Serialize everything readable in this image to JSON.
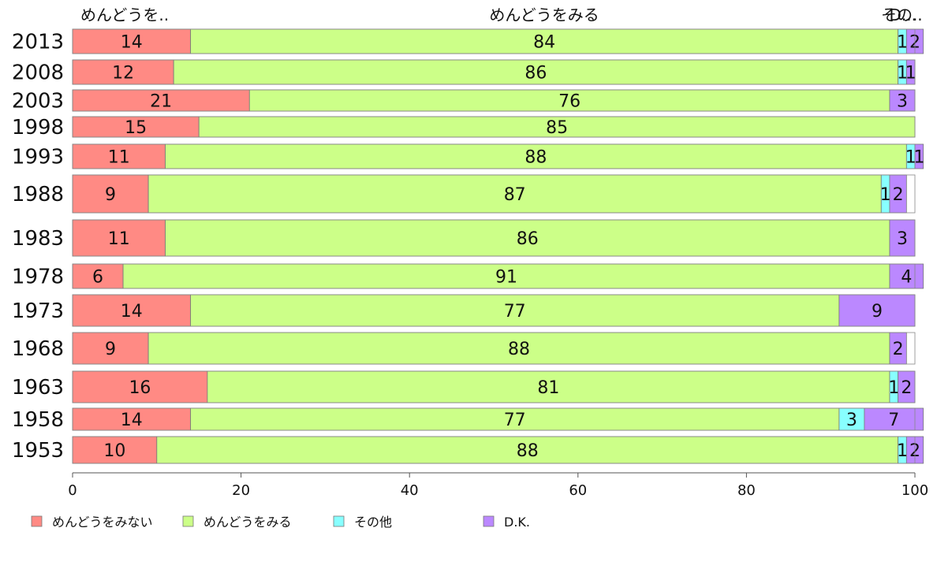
{
  "chart_data": {
    "type": "bar",
    "orientation": "horizontal",
    "stacked": true,
    "categories": [
      "2013",
      "2008",
      "2003",
      "1998",
      "1993",
      "1988",
      "1983",
      "1978",
      "1973",
      "1968",
      "1963",
      "1958",
      "1953"
    ],
    "series": [
      {
        "name": "めんどうをみない",
        "color": "#ff8a84",
        "values": [
          14,
          12,
          21,
          15,
          11,
          9,
          11,
          6,
          14,
          9,
          16,
          14,
          10
        ]
      },
      {
        "name": "めんどうをみる",
        "color": "#ccff88",
        "values": [
          84,
          86,
          76,
          85,
          88,
          87,
          86,
          91,
          77,
          88,
          81,
          77,
          88
        ]
      },
      {
        "name": "その他",
        "color": "#88ffff",
        "values": [
          1,
          1,
          0,
          0,
          1,
          1,
          0,
          0,
          0,
          0,
          1,
          3,
          1
        ]
      },
      {
        "name": "D.K.",
        "color": "#bb88ff",
        "values": [
          2,
          1,
          3,
          0,
          1,
          2,
          3,
          4,
          9,
          2,
          2,
          7,
          2
        ]
      }
    ],
    "top_labels": [
      "めんどうを..",
      "めんどうをみる",
      "その..",
      "D..."
    ],
    "x_ticks": [
      "0",
      "20",
      "40",
      "60",
      "80",
      "100"
    ],
    "xlim": [
      0,
      100
    ],
    "legend_position": "bottom",
    "grid": false
  }
}
